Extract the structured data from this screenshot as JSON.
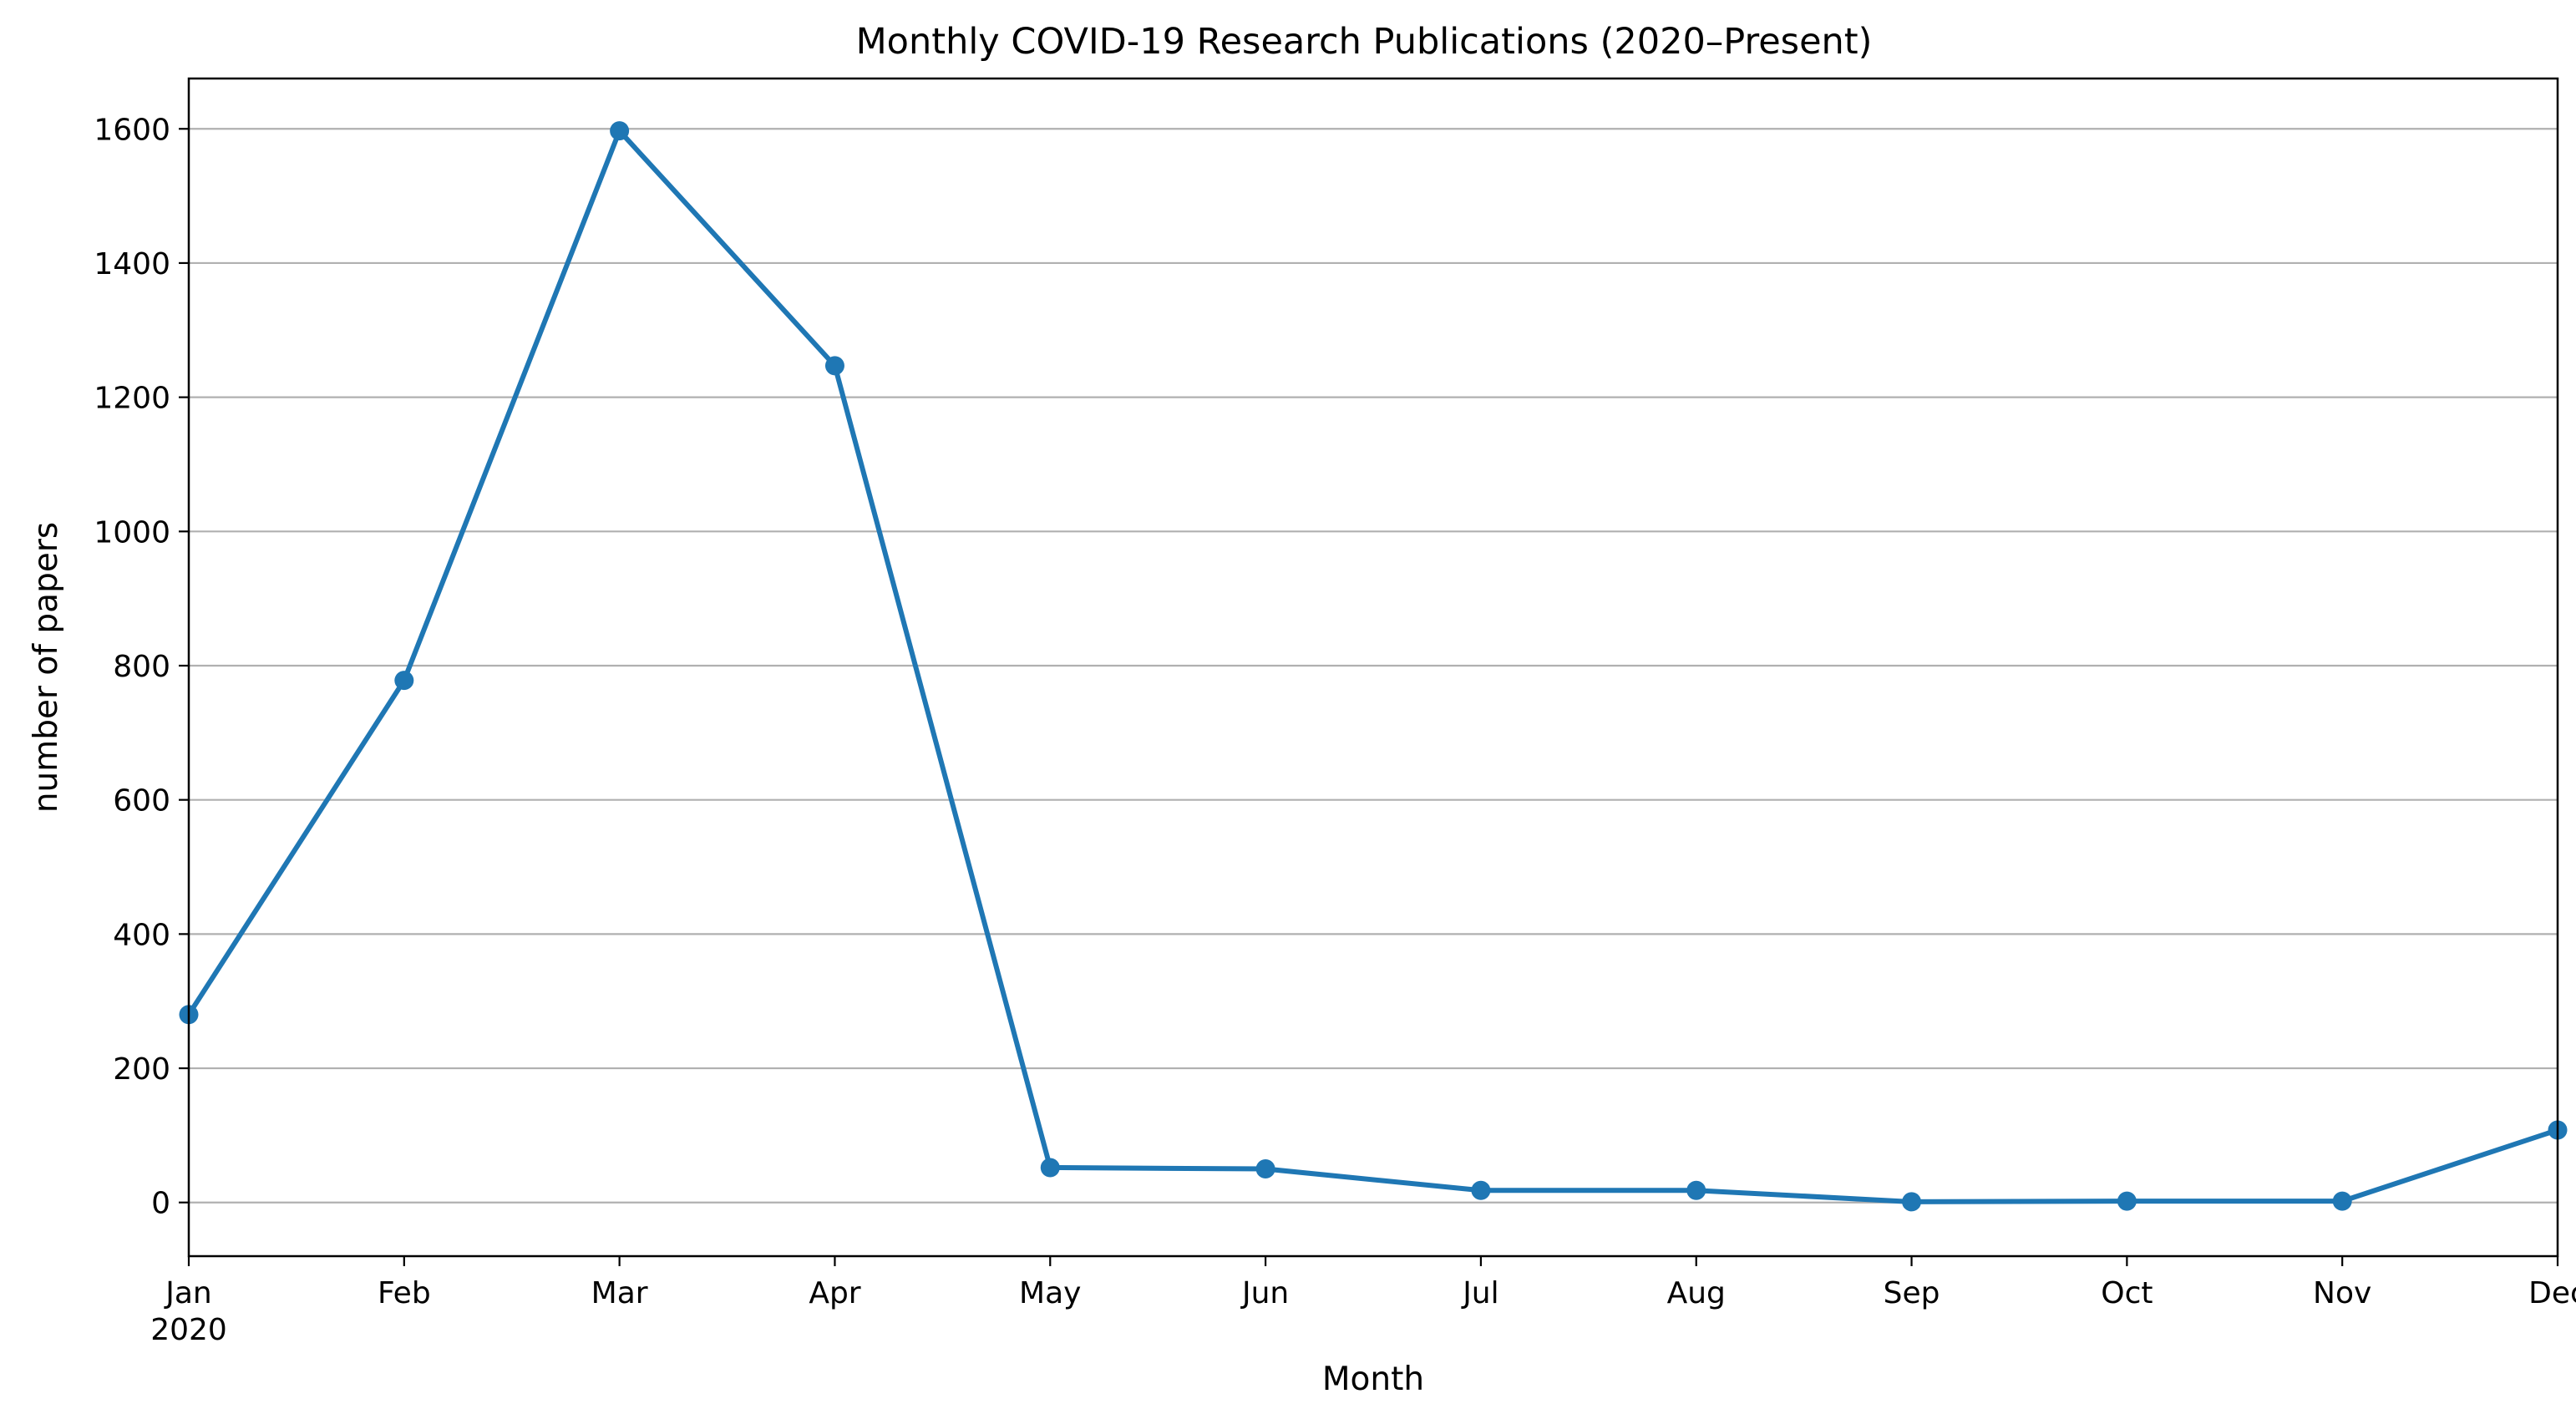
{
  "chart_data": {
    "type": "line",
    "title": "Monthly COVID-19 Research Publications (2020–Present)",
    "xlabel": "Month",
    "ylabel": "number of papers",
    "categories": [
      "Jan",
      "Feb",
      "Mar",
      "Apr",
      "May",
      "Jun",
      "Jul",
      "Aug",
      "Sep",
      "Oct",
      "Nov",
      "Dec"
    ],
    "year_label": "2020",
    "series": [
      {
        "values": [
          280,
          778,
          1597,
          1247,
          52,
          50,
          18,
          18,
          1,
          2,
          2,
          108
        ],
        "color": "#1f77b4"
      }
    ],
    "ylim": [
      -80,
      1675
    ],
    "yticks": [
      0,
      200,
      400,
      600,
      800,
      1000,
      1200,
      1400,
      1600
    ],
    "grid": "horizontal",
    "legend": "none"
  }
}
